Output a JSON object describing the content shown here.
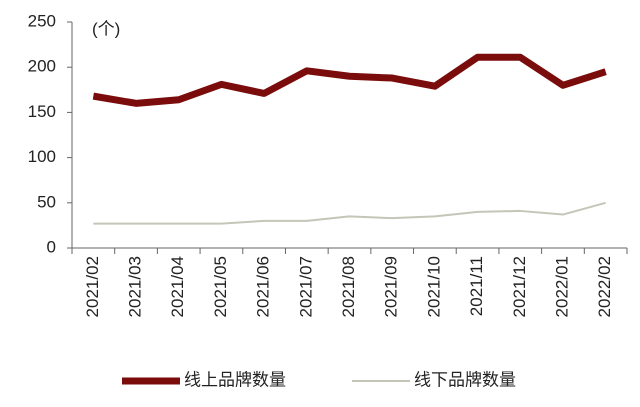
{
  "chart_data": {
    "type": "line",
    "annotation": "(个)",
    "categories": [
      "2021/02",
      "2021/03",
      "2021/04",
      "2021/05",
      "2021/06",
      "2021/07",
      "2021/08",
      "2021/09",
      "2021/10",
      "2021/11",
      "2021/12",
      "2022/01",
      "2022/02"
    ],
    "series": [
      {
        "name": "线上品牌数量",
        "color": "#7b0c0c",
        "values": [
          168,
          160,
          164,
          181,
          171,
          196,
          190,
          188,
          179,
          211,
          211,
          180,
          195
        ]
      },
      {
        "name": "线下品牌数量",
        "color": "#c4c6b8",
        "values": [
          27,
          27,
          27,
          27,
          30,
          30,
          35,
          33,
          35,
          40,
          41,
          37,
          50
        ]
      }
    ],
    "ylim": [
      0,
      250
    ],
    "yticks": [
      0,
      50,
      100,
      150,
      200,
      250
    ],
    "grid": false
  }
}
